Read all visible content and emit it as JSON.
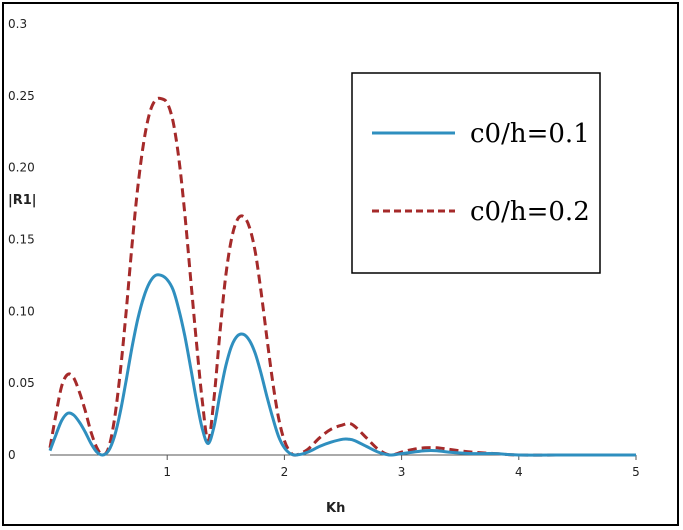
{
  "chart_data": {
    "type": "line",
    "title": "",
    "xlabel": "Kh",
    "ylabel": "|R1|",
    "xlim": [
      0,
      5
    ],
    "ylim": [
      0,
      0.3
    ],
    "x_ticks": [
      "1",
      "2",
      "3",
      "4",
      "5"
    ],
    "y_ticks": [
      "0",
      "0.05",
      "0.10",
      "0.15",
      "0.20",
      "0.25",
      "0.3"
    ],
    "y_tick_values": [
      0,
      0.05,
      0.1,
      0.15,
      0.2,
      0.25,
      0.3
    ],
    "grid": false,
    "legend_position": "top-right",
    "series": [
      {
        "name": "c0/h=0.1",
        "color": "#2f8fbf",
        "style": "solid",
        "x": [
          0,
          0.05,
          0.1,
          0.15,
          0.2,
          0.25,
          0.3,
          0.35,
          0.4,
          0.45,
          0.5,
          0.55,
          0.6,
          0.65,
          0.7,
          0.75,
          0.8,
          0.85,
          0.9,
          0.95,
          1.0,
          1.05,
          1.1,
          1.15,
          1.2,
          1.25,
          1.3,
          1.35,
          1.4,
          1.45,
          1.5,
          1.55,
          1.6,
          1.65,
          1.7,
          1.75,
          1.8,
          1.85,
          1.9,
          1.95,
          2.0,
          2.05,
          2.1,
          2.2,
          2.3,
          2.4,
          2.5,
          2.55,
          2.6,
          2.7,
          2.8,
          2.9,
          3.0,
          3.1,
          3.2,
          3.3,
          3.4,
          3.6,
          3.8,
          4.0,
          4.5,
          5.0
        ],
        "y": [
          0.003,
          0.014,
          0.024,
          0.029,
          0.028,
          0.023,
          0.016,
          0.008,
          0.002,
          0.0,
          0.003,
          0.013,
          0.03,
          0.052,
          0.075,
          0.095,
          0.11,
          0.12,
          0.125,
          0.125,
          0.122,
          0.115,
          0.101,
          0.083,
          0.061,
          0.038,
          0.018,
          0.008,
          0.02,
          0.042,
          0.062,
          0.076,
          0.083,
          0.084,
          0.08,
          0.071,
          0.057,
          0.041,
          0.026,
          0.013,
          0.005,
          0.001,
          0.0,
          0.002,
          0.006,
          0.009,
          0.011,
          0.011,
          0.01,
          0.006,
          0.002,
          0.0,
          0.001,
          0.002,
          0.003,
          0.003,
          0.002,
          0.001,
          0.001,
          0.0,
          0.0,
          0.0
        ]
      },
      {
        "name": "c0/h=0.2",
        "color": "#a52a2a",
        "style": "dashed",
        "x": [
          0,
          0.05,
          0.1,
          0.15,
          0.2,
          0.25,
          0.3,
          0.35,
          0.4,
          0.45,
          0.5,
          0.55,
          0.6,
          0.65,
          0.7,
          0.75,
          0.8,
          0.85,
          0.9,
          0.95,
          1.0,
          1.05,
          1.1,
          1.15,
          1.2,
          1.25,
          1.3,
          1.35,
          1.4,
          1.45,
          1.5,
          1.55,
          1.6,
          1.65,
          1.7,
          1.75,
          1.8,
          1.85,
          1.9,
          1.95,
          2.0,
          2.05,
          2.1,
          2.2,
          2.3,
          2.4,
          2.5,
          2.55,
          2.6,
          2.7,
          2.8,
          2.9,
          3.0,
          3.1,
          3.2,
          3.3,
          3.4,
          3.6,
          3.8,
          4.0,
          4.5,
          5.0
        ],
        "y": [
          0.005,
          0.028,
          0.048,
          0.056,
          0.054,
          0.044,
          0.031,
          0.016,
          0.005,
          0.0,
          0.005,
          0.025,
          0.058,
          0.1,
          0.146,
          0.187,
          0.218,
          0.238,
          0.247,
          0.248,
          0.245,
          0.232,
          0.206,
          0.168,
          0.123,
          0.078,
          0.037,
          0.01,
          0.04,
          0.085,
          0.125,
          0.151,
          0.164,
          0.166,
          0.159,
          0.142,
          0.114,
          0.082,
          0.051,
          0.026,
          0.01,
          0.002,
          0.0,
          0.004,
          0.012,
          0.018,
          0.021,
          0.022,
          0.02,
          0.012,
          0.004,
          0.0,
          0.002,
          0.004,
          0.005,
          0.005,
          0.004,
          0.002,
          0.001,
          0.0,
          0.0,
          0.0
        ]
      }
    ]
  }
}
